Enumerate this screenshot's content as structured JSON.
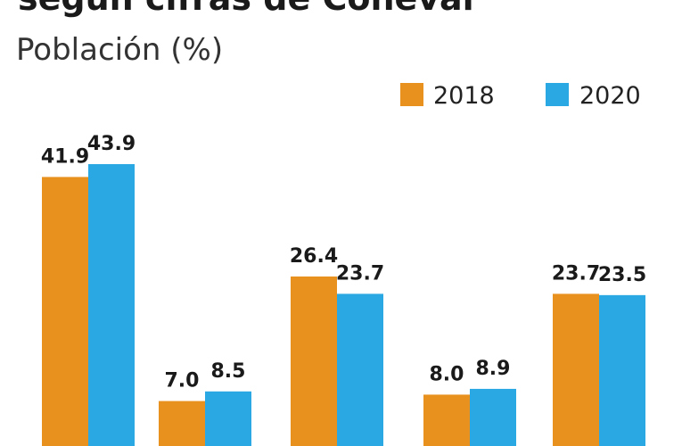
{
  "header": {
    "title": "según cifras de Coneval",
    "subtitle": "Población (%)"
  },
  "colors": {
    "series_2018": "#e8911f",
    "series_2020": "#29a8e3"
  },
  "chart_data": {
    "type": "bar",
    "categories": [
      "",
      "",
      "",
      "",
      ""
    ],
    "series": [
      {
        "name": "2018",
        "values": [
          41.9,
          7.0,
          26.4,
          8.0,
          23.7
        ]
      },
      {
        "name": "2020",
        "values": [
          43.9,
          8.5,
          23.7,
          8.9,
          23.5
        ]
      }
    ],
    "ylim": [
      0,
      43.9
    ],
    "grid": false,
    "legend": "top-right"
  }
}
